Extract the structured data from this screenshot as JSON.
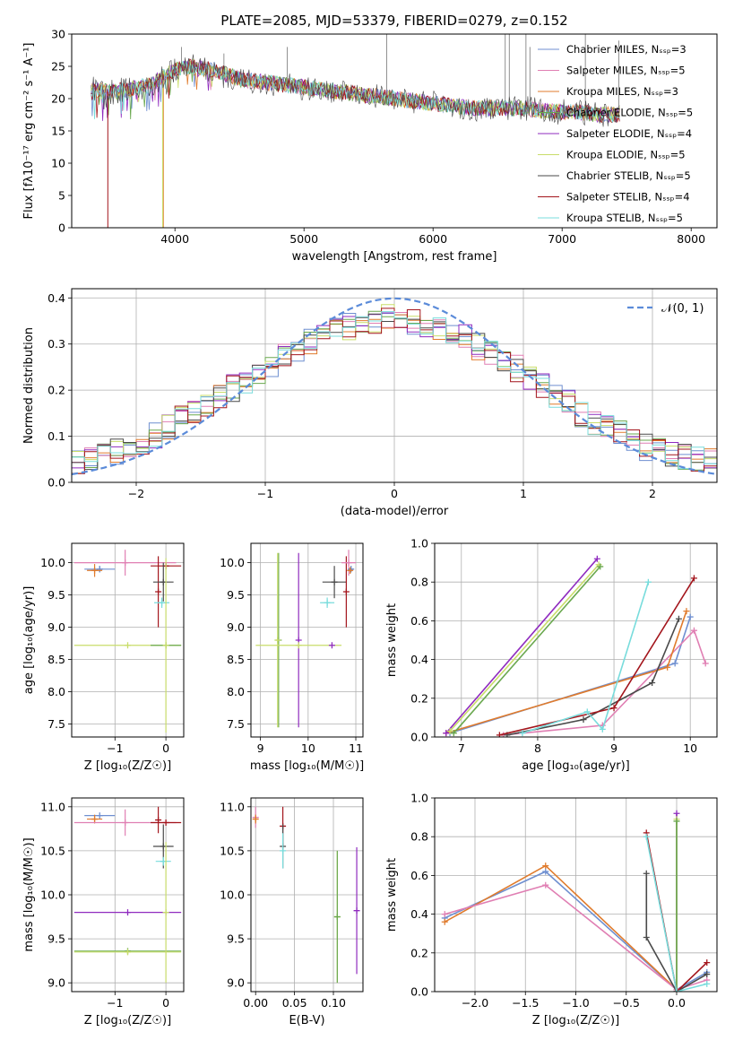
{
  "figure_title": "PLATE=2085, MJD=53379, FIBERID=0279, z=0.152",
  "palette": [
    "#6f8fd0",
    "#e07fb3",
    "#e07b2c",
    "#6aa84f",
    "#8f2bbf",
    "#c9dd6a",
    "#4a4a4a",
    "#a3151c",
    "#78dcdc"
  ],
  "chart_data": [
    {
      "id": "spectrum",
      "type": "line",
      "xlabel": "wavelength [Angstrom, rest frame]",
      "ylabel": "Flux [fλ10⁻¹⁷ erg cm⁻² s⁻¹ A⁻¹]",
      "xlim": [
        3200,
        8200
      ],
      "ylim": [
        0,
        30
      ],
      "xticks": [
        "4000",
        "5000",
        "6000",
        "7000",
        "8000"
      ],
      "yticks": [
        "0",
        "5",
        "10",
        "15",
        "20",
        "25",
        "30"
      ],
      "grid": false,
      "legend_position": "top-right",
      "legend": [
        "Chabrier MILES, Nₛₛₚ=3",
        "Salpeter MILES, Nₛₛₚ=5",
        "Kroupa MILES, Nₛₛₚ=3",
        "Chabrier ELODIE, Nₛₛₚ=5",
        "Salpeter ELODIE, Nₛₛₚ=4",
        "Kroupa ELODIE, Nₛₛₚ=5",
        "Chabrier STELIB, Nₛₛₚ=5",
        "Salpeter STELIB, Nₛₛₚ=4",
        "Kroupa STELIB, Nₛₛₚ=5"
      ],
      "continuum": {
        "x": [
          3350,
          3500,
          3650,
          3800,
          3950,
          4100,
          4300,
          4500,
          4700,
          4900,
          5100,
          5300,
          5500,
          5700,
          5900,
          6100,
          6300,
          6500,
          6700,
          6900,
          7100,
          7300,
          7450
        ],
        "y": [
          21.5,
          21,
          21.5,
          22,
          24,
          25,
          24.5,
          23,
          22.5,
          22,
          21.5,
          21,
          20.5,
          20,
          19.5,
          19,
          18.5,
          18.5,
          18.5,
          18,
          18,
          17.5,
          17.5
        ]
      },
      "noise_amplitude": 2.5,
      "drops": [
        {
          "series": 7,
          "x": 3480
        },
        {
          "series": 5,
          "x": 3905
        },
        {
          "series": 2,
          "x": 3910
        },
        {
          "series": 5,
          "x": 6800
        },
        {
          "series": 2,
          "x": 7420
        }
      ],
      "spikes": [
        {
          "x": 4050,
          "y": 28
        },
        {
          "x": 4380,
          "y": 27
        },
        {
          "x": 4870,
          "y": 28
        },
        {
          "x": 5640,
          "y": 30
        },
        {
          "x": 6560,
          "y": 30
        },
        {
          "x": 6590,
          "y": 30
        },
        {
          "x": 6720,
          "y": 30
        },
        {
          "x": 6750,
          "y": 28
        },
        {
          "x": 7180,
          "y": 30
        },
        {
          "x": 7440,
          "y": 29
        }
      ]
    },
    {
      "id": "residuals",
      "type": "line",
      "xlabel": "(data-model)/error",
      "ylabel": "Normed distribution",
      "xlim": [
        -2.5,
        2.5
      ],
      "ylim": [
        0,
        0.42
      ],
      "xticks": [
        "−2",
        "−1",
        "0",
        "1",
        "2"
      ],
      "yticks": [
        "0.0",
        "0.1",
        "0.2",
        "0.3",
        "0.4"
      ],
      "grid": true,
      "legend_position": "top-right",
      "legend": [
        "𝒩(0, 1)"
      ],
      "bin_width": 0.1,
      "step_profile": {
        "x": [
          -2.5,
          -2.0,
          -1.5,
          -1.0,
          -0.5,
          0.0,
          0.5,
          1.0,
          1.5,
          2.0,
          2.5
        ],
        "y": [
          0.04,
          0.08,
          0.16,
          0.25,
          0.33,
          0.36,
          0.32,
          0.24,
          0.14,
          0.07,
          0.04
        ]
      },
      "curve": {
        "name": "𝒩(0, 1)",
        "mean": 0,
        "sigma": 1,
        "color": "#5b8bd9"
      }
    },
    {
      "id": "age-vs-Z",
      "type": "scatter",
      "xlabel": "Z [log₁₀(Z/Z☉)]",
      "ylabel": "age  [log₁₀(age/yr)]",
      "xlim": [
        -1.85,
        0.35
      ],
      "ylim": [
        7.3,
        10.3
      ],
      "xticks": [
        "−1",
        "0"
      ],
      "yticks": [
        "7.5",
        "8.0",
        "8.5",
        "9.0",
        "9.5",
        "10.0"
      ],
      "grid": true,
      "points": [
        {
          "series": 0,
          "x": -1.3,
          "y": 9.9,
          "xerr": 0.3,
          "yerr": 0.05
        },
        {
          "series": 1,
          "x": -0.8,
          "y": 10.0,
          "xerr": 1.0,
          "yerr": 0.2
        },
        {
          "series": 2,
          "x": -1.4,
          "y": 9.88,
          "xerr": 0.15,
          "yerr": 0.1
        },
        {
          "series": 7,
          "x": -0.15,
          "y": 9.55,
          "xerr": 0.0,
          "yerr": 0.55
        },
        {
          "series": 7,
          "x": 0.0,
          "y": 9.95,
          "xerr": 0.3,
          "yerr": 0.0
        },
        {
          "series": 6,
          "x": -0.05,
          "y": 9.7,
          "xerr": 0.2,
          "yerr": 0.3
        },
        {
          "series": 8,
          "x": -0.08,
          "y": 9.38,
          "xerr": 0.15,
          "yerr": 0.08
        },
        {
          "series": 5,
          "x": -0.75,
          "y": 8.72,
          "xerr": 1.05,
          "yerr": 0.0
        },
        {
          "series": 3,
          "x": 0.0,
          "y": 8.72,
          "xerr": 0.3,
          "yerr": 0.0
        },
        {
          "series": 5,
          "x": 0.0,
          "y": 8.72,
          "xerr": 0.0,
          "yerr": 1.35
        }
      ]
    },
    {
      "id": "age-vs-mass",
      "type": "scatter",
      "xlabel": "mass [log₁₀(M/M☉)]",
      "ylabel": "",
      "xlim": [
        8.8,
        11.15
      ],
      "ylim": [
        7.3,
        10.3
      ],
      "xticks": [
        "9",
        "10",
        "11"
      ],
      "yticks": [
        "7.5",
        "8.0",
        "8.5",
        "9.0",
        "9.5",
        "10.0"
      ],
      "grid": true,
      "points": [
        {
          "series": 3,
          "x": 9.38,
          "y": 8.8,
          "xerr": 0.0,
          "yerr": 1.35
        },
        {
          "series": 5,
          "x": 9.36,
          "y": 8.8,
          "xerr": 0.0,
          "yerr": 1.35
        },
        {
          "series": 4,
          "x": 9.8,
          "y": 8.8,
          "xerr": 0.0,
          "yerr": 1.35
        },
        {
          "series": 5,
          "x": 9.8,
          "y": 8.72,
          "xerr": 0.9,
          "yerr": 0.0
        },
        {
          "series": 4,
          "x": 10.5,
          "y": 8.72,
          "xerr": 0.0,
          "yerr": 0.0
        },
        {
          "series": 6,
          "x": 10.55,
          "y": 9.7,
          "xerr": 0.25,
          "yerr": 0.25
        },
        {
          "series": 8,
          "x": 10.4,
          "y": 9.38,
          "xerr": 0.15,
          "yerr": 0.08
        },
        {
          "series": 7,
          "x": 10.8,
          "y": 9.55,
          "xerr": 0.0,
          "yerr": 0.55
        },
        {
          "series": 1,
          "x": 10.85,
          "y": 10.0,
          "xerr": 0.15,
          "yerr": 0.2
        },
        {
          "series": 0,
          "x": 10.9,
          "y": 9.9,
          "xerr": 0.05,
          "yerr": 0.05
        },
        {
          "series": 2,
          "x": 10.88,
          "y": 9.88,
          "xerr": 0.05,
          "yerr": 0.05
        }
      ]
    },
    {
      "id": "massweight-vs-age",
      "type": "line",
      "xlabel": "age  [log₁₀(age/yr)]",
      "ylabel": "mass weight",
      "xlim": [
        6.65,
        10.35
      ],
      "ylim": [
        0,
        1.0
      ],
      "xticks": [
        "7",
        "8",
        "9",
        "10"
      ],
      "yticks": [
        "0.0",
        "0.2",
        "0.4",
        "0.6",
        "0.8",
        "1.0"
      ],
      "grid": true,
      "series": [
        {
          "series": 0,
          "x": [
            6.85,
            9.8,
            10.0
          ],
          "y": [
            0.02,
            0.38,
            0.62
          ]
        },
        {
          "series": 1,
          "x": [
            7.55,
            8.85,
            10.05,
            10.2
          ],
          "y": [
            0.01,
            0.06,
            0.55,
            0.38
          ]
        },
        {
          "series": 2,
          "x": [
            6.8,
            9.7,
            9.95
          ],
          "y": [
            0.02,
            0.36,
            0.65
          ]
        },
        {
          "series": 4,
          "x": [
            6.8,
            8.78
          ],
          "y": [
            0.02,
            0.92
          ]
        },
        {
          "series": 5,
          "x": [
            6.85,
            8.8
          ],
          "y": [
            0.03,
            0.89
          ]
        },
        {
          "series": 3,
          "x": [
            6.9,
            8.82
          ],
          "y": [
            0.02,
            0.88
          ]
        },
        {
          "series": 6,
          "x": [
            7.6,
            8.6,
            9.5,
            9.85
          ],
          "y": [
            0.01,
            0.09,
            0.28,
            0.61
          ]
        },
        {
          "series": 7,
          "x": [
            7.5,
            9.0,
            10.05
          ],
          "y": [
            0.01,
            0.15,
            0.82
          ]
        },
        {
          "series": 8,
          "x": [
            7.8,
            8.65,
            8.85,
            9.45
          ],
          "y": [
            0.02,
            0.13,
            0.04,
            0.8
          ]
        }
      ]
    },
    {
      "id": "mass-vs-Z",
      "type": "scatter",
      "xlabel": "Z [log₁₀(Z/Z☉)]",
      "ylabel": "mass [log₁₀(M/M☉)]",
      "xlim": [
        -1.85,
        0.35
      ],
      "ylim": [
        8.9,
        11.1
      ],
      "xticks": [
        "−1",
        "0"
      ],
      "yticks": [
        "9.0",
        "9.5",
        "10.0",
        "10.5",
        "11.0"
      ],
      "grid": true,
      "points": [
        {
          "series": 0,
          "x": -1.3,
          "y": 10.9,
          "xerr": 0.3,
          "yerr": 0.0
        },
        {
          "series": 2,
          "x": -1.4,
          "y": 10.86,
          "xerr": 0.15,
          "yerr": 0.05
        },
        {
          "series": 1,
          "x": -0.8,
          "y": 10.82,
          "xerr": 1.0,
          "yerr": 0.15
        },
        {
          "series": 7,
          "x": 0.0,
          "y": 10.82,
          "xerr": 0.3,
          "yerr": 0.0
        },
        {
          "series": 7,
          "x": -0.15,
          "y": 10.85,
          "xerr": 0.0,
          "yerr": 0.15
        },
        {
          "series": 6,
          "x": -0.05,
          "y": 10.55,
          "xerr": 0.2,
          "yerr": 0.25
        },
        {
          "series": 8,
          "x": -0.05,
          "y": 10.38,
          "xerr": 0.15,
          "yerr": 0.05
        },
        {
          "series": 4,
          "x": -0.75,
          "y": 9.8,
          "xerr": 1.05,
          "yerr": 0.0
        },
        {
          "series": 3,
          "x": -0.75,
          "y": 9.36,
          "xerr": 1.05,
          "yerr": 0.0
        },
        {
          "series": 5,
          "x": -0.75,
          "y": 9.35,
          "xerr": 1.05,
          "yerr": 0.0
        },
        {
          "series": 5,
          "x": 0.0,
          "y": 9.8,
          "xerr": 0.0,
          "yerr": 0.8
        }
      ]
    },
    {
      "id": "mass-vs-EBV",
      "type": "scatter",
      "xlabel": "E(B-V)",
      "ylabel": "",
      "xlim": [
        -0.006,
        0.138
      ],
      "ylim": [
        8.9,
        11.1
      ],
      "xticks": [
        "0.00",
        "0.05",
        "0.10"
      ],
      "yticks": [
        "9.0",
        "9.5",
        "10.0",
        "10.5",
        "11.0"
      ],
      "grid": true,
      "points": [
        {
          "series": 1,
          "x": 0.0,
          "y": 10.88,
          "xerr": 0.0,
          "yerr": 0.12
        },
        {
          "series": 2,
          "x": 0.0,
          "y": 10.86,
          "xerr": 0.0,
          "yerr": 0.05
        },
        {
          "series": 7,
          "x": 0.035,
          "y": 10.78,
          "xerr": 0.0,
          "yerr": 0.22
        },
        {
          "series": 6,
          "x": 0.035,
          "y": 10.55,
          "xerr": 0.0,
          "yerr": 0.25
        },
        {
          "series": 8,
          "x": 0.035,
          "y": 10.5,
          "xerr": 0.0,
          "yerr": 0.2
        },
        {
          "series": 5,
          "x": 0.105,
          "y": 9.75,
          "xerr": 0.0,
          "yerr": 0.75
        },
        {
          "series": 3,
          "x": 0.105,
          "y": 9.75,
          "xerr": 0.0,
          "yerr": 0.75
        },
        {
          "series": 4,
          "x": 0.13,
          "y": 9.82,
          "xerr": 0.0,
          "yerr": 0.72
        }
      ]
    },
    {
      "id": "massweight-vs-Z",
      "type": "line",
      "xlabel": "Z [log₁₀(Z/Z☉)]",
      "ylabel": "mass weight",
      "xlim": [
        -2.4,
        0.4
      ],
      "ylim": [
        0,
        1.0
      ],
      "xticks": [
        "−2.0",
        "−1.5",
        "−1.0",
        "−0.5",
        "0.0"
      ],
      "yticks": [
        "0.0",
        "0.2",
        "0.4",
        "0.6",
        "0.8",
        "1.0"
      ],
      "grid": true,
      "series": [
        {
          "series": 0,
          "x": [
            -2.3,
            -1.3,
            0.0,
            0.3
          ],
          "y": [
            0.38,
            0.62,
            0.01,
            0.1
          ]
        },
        {
          "series": 2,
          "x": [
            -2.3,
            -1.3,
            0.0
          ],
          "y": [
            0.36,
            0.65,
            0.01
          ]
        },
        {
          "series": 1,
          "x": [
            -2.3,
            -1.3,
            0.0,
            0.3
          ],
          "y": [
            0.4,
            0.55,
            0.01,
            0.06
          ]
        },
        {
          "series": 4,
          "x": [
            0.0,
            0.0
          ],
          "y": [
            0.92,
            0.0
          ]
        },
        {
          "series": 5,
          "x": [
            0.0,
            0.0
          ],
          "y": [
            0.89,
            0.0
          ]
        },
        {
          "series": 3,
          "x": [
            0.0,
            0.0
          ],
          "y": [
            0.88,
            0.0
          ]
        },
        {
          "series": 6,
          "x": [
            -0.3,
            -0.3,
            0.0,
            0.3
          ],
          "y": [
            0.61,
            0.28,
            0.0,
            0.09
          ]
        },
        {
          "series": 7,
          "x": [
            -0.3,
            0.0,
            0.3
          ],
          "y": [
            0.82,
            0.0,
            0.15
          ]
        },
        {
          "series": 8,
          "x": [
            -0.3,
            0.0,
            0.3
          ],
          "y": [
            0.8,
            0.0,
            0.04
          ]
        }
      ]
    }
  ]
}
